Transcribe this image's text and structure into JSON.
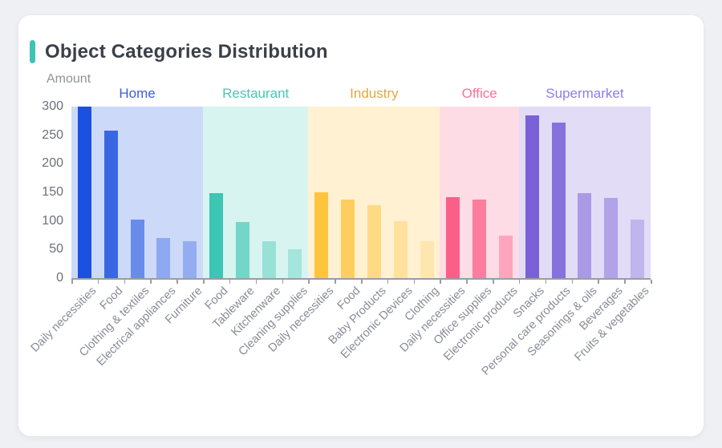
{
  "card": {
    "title": "Object Categories Distribution",
    "accent_color": "#3fc3b4"
  },
  "chart_data": {
    "type": "bar",
    "title": "Object Categories Distribution",
    "ylabel": "Amount",
    "xlabel": "",
    "ylim": [
      0,
      300
    ],
    "yticks": [
      0,
      50,
      100,
      150,
      200,
      250,
      300
    ],
    "grid": false,
    "legend_position": "group-headers-top",
    "groups": [
      {
        "name": "Home",
        "color": "#1b50e0",
        "label_color": "#3b5ede",
        "panel_tint": 0.22,
        "bars": [
          {
            "label": "Daily necessities",
            "value": 300,
            "tint": 1
          },
          {
            "label": "Food",
            "value": 258,
            "tint": 0.87
          },
          {
            "label": "Clothing & textiles",
            "value": 103,
            "tint": 0.66
          },
          {
            "label": "Electrical appliances",
            "value": 70,
            "tint": 0.49
          },
          {
            "label": "Furniture",
            "value": 64,
            "tint": 0.47
          }
        ]
      },
      {
        "name": "Restaurant",
        "color": "#3cc6b4",
        "label_color": "#45c8b2",
        "panel_tint": 0.2,
        "bars": [
          {
            "label": "Food",
            "value": 148,
            "tint": 1
          },
          {
            "label": "Tableware",
            "value": 98,
            "tint": 0.72
          },
          {
            "label": "Kitchenware",
            "value": 65,
            "tint": 0.53
          },
          {
            "label": "Cleaning supplies",
            "value": 51,
            "tint": 0.46
          }
        ]
      },
      {
        "name": "Industry",
        "color": "#fdc53e",
        "label_color": "#e2a83e",
        "panel_tint": 0.24,
        "bars": [
          {
            "label": "Daily necessities",
            "value": 150,
            "tint": 1
          },
          {
            "label": "Food",
            "value": 138,
            "tint": 0.84
          },
          {
            "label": "Baby Products",
            "value": 127,
            "tint": 0.63
          },
          {
            "label": "Electronic Devices",
            "value": 100,
            "tint": 0.51
          },
          {
            "label": "Clothing",
            "value": 64,
            "tint": 0.42
          }
        ]
      },
      {
        "name": "Office",
        "color": "#fb5f88",
        "label_color": "#f8729c",
        "panel_tint": 0.22,
        "bars": [
          {
            "label": "Daily necessities",
            "value": 142,
            "tint": 1
          },
          {
            "label": "Office supplies",
            "value": 138,
            "tint": 0.81
          },
          {
            "label": "Electronic products",
            "value": 75,
            "tint": 0.56
          }
        ]
      },
      {
        "name": "Supermarket",
        "color": "#7a61d8",
        "label_color": "#8f7de8",
        "panel_tint": 0.22,
        "bars": [
          {
            "label": "Snacks",
            "value": 285,
            "tint": 1
          },
          {
            "label": "Personal care products",
            "value": 272,
            "tint": 0.9
          },
          {
            "label": "Seasonings & oils",
            "value": 148,
            "tint": 0.64
          },
          {
            "label": "Beverages",
            "value": 140,
            "tint": 0.58
          },
          {
            "label": "Fruits & vegetables",
            "value": 102,
            "tint": 0.47
          }
        ]
      }
    ]
  }
}
